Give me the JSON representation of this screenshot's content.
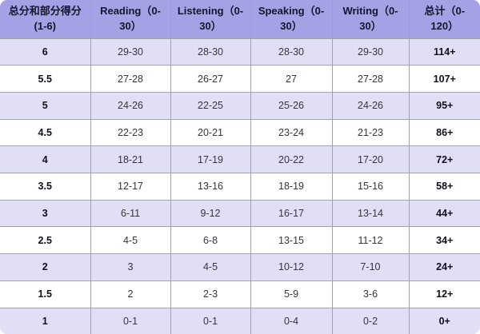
{
  "title": "IELTS band to TOEFL score conversion table",
  "colors": {
    "header_bg": "#a4a1e4",
    "row_alt_bg": "#e1dff6",
    "row_bg": "#ffffff",
    "border": "#a2a2ab",
    "header_text": "#15152e",
    "text": "#35353d",
    "bold_text": "#0f0f1c"
  },
  "table": {
    "headers": [
      "总分和部分得分\n(1-6)",
      "Reading（0-\n30）",
      "Listening（0-\n30）",
      "Speaking（0-\n30）",
      "Writing（0-\n30）",
      "总计（0-\n120）"
    ],
    "column_keys": [
      "score",
      "reading",
      "listening",
      "speaking",
      "writing",
      "total"
    ],
    "rows": [
      [
        "6",
        "29-30",
        "28-30",
        "28-30",
        "29-30",
        "114+"
      ],
      [
        "5.5",
        "27-28",
        "26-27",
        "27",
        "27-28",
        "107+"
      ],
      [
        "5",
        "24-26",
        "22-25",
        "25-26",
        "24-26",
        "95+"
      ],
      [
        "4.5",
        "22-23",
        "20-21",
        "23-24",
        "21-23",
        "86+"
      ],
      [
        "4",
        "18-21",
        "17-19",
        "20-22",
        "17-20",
        "72+"
      ],
      [
        "3.5",
        "12-17",
        "13-16",
        "18-19",
        "15-16",
        "58+"
      ],
      [
        "3",
        "6-11",
        "9-12",
        "16-17",
        "13-14",
        "44+"
      ],
      [
        "2.5",
        "4-5",
        "6-8",
        "13-15",
        "11-12",
        "34+"
      ],
      [
        "2",
        "3",
        "4-5",
        "10-12",
        "7-10",
        "24+"
      ],
      [
        "1.5",
        "2",
        "2-3",
        "5-9",
        "3-6",
        "12+"
      ],
      [
        "1",
        "0-1",
        "0-1",
        "0-4",
        "0-2",
        "0+"
      ]
    ]
  },
  "chart_data": {
    "type": "table",
    "title": "总分和部分得分对照 (IELTS band vs TOEFL section scores)",
    "columns": [
      "总分和部分得分 (1-6)",
      "Reading（0-30）",
      "Listening（0-30）",
      "Speaking（0-30）",
      "Writing（0-30）",
      "总计（0-120）"
    ],
    "rows": [
      [
        "6",
        "29-30",
        "28-30",
        "28-30",
        "29-30",
        "114+"
      ],
      [
        "5.5",
        "27-28",
        "26-27",
        "27",
        "27-28",
        "107+"
      ],
      [
        "5",
        "24-26",
        "22-25",
        "25-26",
        "24-26",
        "95+"
      ],
      [
        "4.5",
        "22-23",
        "20-21",
        "23-24",
        "21-23",
        "86+"
      ],
      [
        "4",
        "18-21",
        "17-19",
        "20-22",
        "17-20",
        "72+"
      ],
      [
        "3.5",
        "12-17",
        "13-16",
        "18-19",
        "15-16",
        "58+"
      ],
      [
        "3",
        "6-11",
        "9-12",
        "16-17",
        "13-14",
        "44+"
      ],
      [
        "2.5",
        "4-5",
        "6-8",
        "13-15",
        "11-12",
        "34+"
      ],
      [
        "2",
        "3",
        "4-5",
        "10-12",
        "7-10",
        "24+"
      ],
      [
        "1.5",
        "2",
        "2-3",
        "5-9",
        "3-6",
        "12+"
      ],
      [
        "1",
        "0-1",
        "0-1",
        "0-4",
        "0-2",
        "0+"
      ]
    ],
    "layout_hints": {
      "striped_rows": "odd data rows lavender, even white",
      "bold_columns": [
        "总分和部分得分 (1-6)",
        "总计（0-120）"
      ],
      "header_background": "#a4a1e4"
    }
  }
}
